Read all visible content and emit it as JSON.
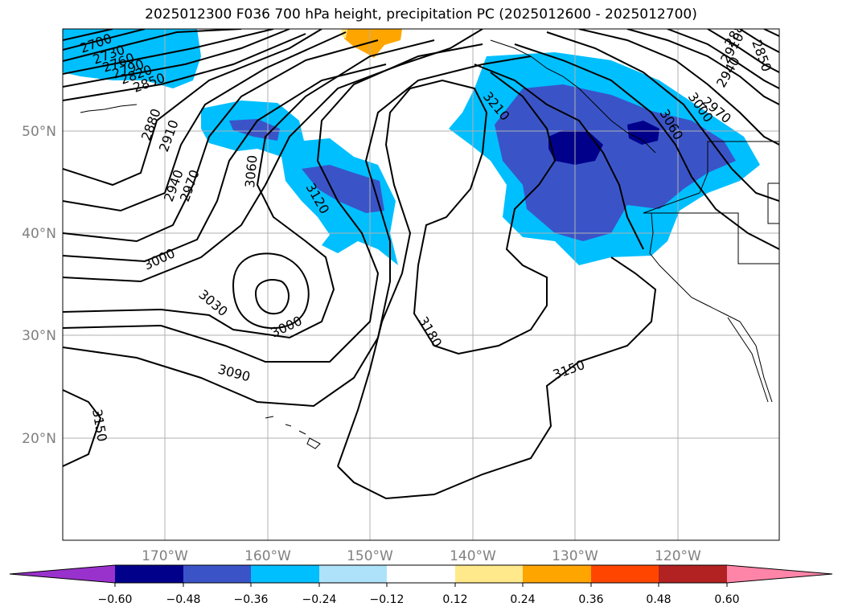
{
  "title": "2025012300 F036 700 hPa height, precipitation PC (2025012600 - 2025012700)",
  "map": {
    "lon_labels": [
      "170°W",
      "160°W",
      "150°W",
      "140°W",
      "130°W",
      "120°W"
    ],
    "lat_labels": [
      "50°N",
      "40°N",
      "30°N",
      "20°N"
    ],
    "contour_labels": [
      "2700",
      "2730",
      "2760",
      "2790",
      "2820",
      "2850",
      "2880",
      "2910",
      "2940",
      "2970",
      "3000",
      "3030",
      "3060",
      "3090",
      "3120",
      "3150",
      "3180",
      "3210",
      "3060",
      "3000",
      "3150",
      "2850",
      "2880",
      "2910",
      "2940",
      "2970",
      "3000"
    ],
    "colors": {
      "neg_060": "#00008b",
      "neg_048": "#3a54c8",
      "neg_036": "#00bfff",
      "neg_024": "#aee2fa",
      "pos_024": "#ffe98a",
      "pos_036": "#ffa500",
      "pos_048": "#ff4500",
      "pos_060": "#b22222",
      "below_min": "#9932cc",
      "above_max": "#ff85a8"
    }
  },
  "colorbar": {
    "ticks": [
      "−0.60",
      "−0.48",
      "−0.36",
      "−0.24",
      "−0.12",
      "0.12",
      "0.24",
      "0.36",
      "0.48",
      "0.60"
    ],
    "colors": [
      "#9932cc",
      "#00008b",
      "#3a54c8",
      "#00bfff",
      "#aee2fa",
      "#ffffff",
      "#ffe98a",
      "#ffa500",
      "#ff4500",
      "#b22222",
      "#ff85a8"
    ]
  }
}
